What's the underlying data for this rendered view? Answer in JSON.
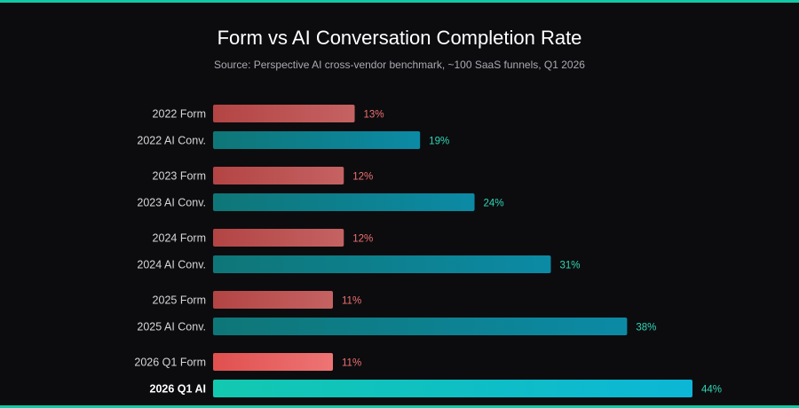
{
  "title": "Form vs AI Conversation Completion Rate",
  "subtitle": "Source: Perspective AI cross-vendor benchmark, ~100 SaaS funnels, Q1 2026",
  "colors": {
    "form": "#b34444",
    "form_highlight": "#e0504f",
    "ai": "#0e7677",
    "ai_highlight": "#12c9b0",
    "form_label": "#f07070",
    "ai_label": "#2fd6b4",
    "background": "#0c0c0f"
  },
  "chart_data": {
    "type": "bar",
    "orientation": "horizontal",
    "title": "Form vs AI Conversation Completion Rate",
    "subtitle": "Source: Perspective AI cross-vendor benchmark, ~100 SaaS funnels, Q1 2026",
    "value_suffix": "%",
    "xlim": [
      0,
      44
    ],
    "grid": false,
    "categories": [
      "2022 Form",
      "2022 AI Conv.",
      "2023 Form",
      "2023 AI Conv.",
      "2024 Form",
      "2024 AI Conv.",
      "2025 Form",
      "2025 AI Conv.",
      "2026 Q1 Form",
      "2026 Q1 AI"
    ],
    "values": [
      13,
      19,
      12,
      24,
      12,
      31,
      11,
      38,
      11,
      44
    ],
    "kinds": [
      "form",
      "ai",
      "form",
      "ai",
      "form",
      "ai",
      "form",
      "ai",
      "form",
      "ai"
    ],
    "highlighted": [
      false,
      false,
      false,
      false,
      false,
      false,
      false,
      false,
      true,
      true
    ]
  }
}
